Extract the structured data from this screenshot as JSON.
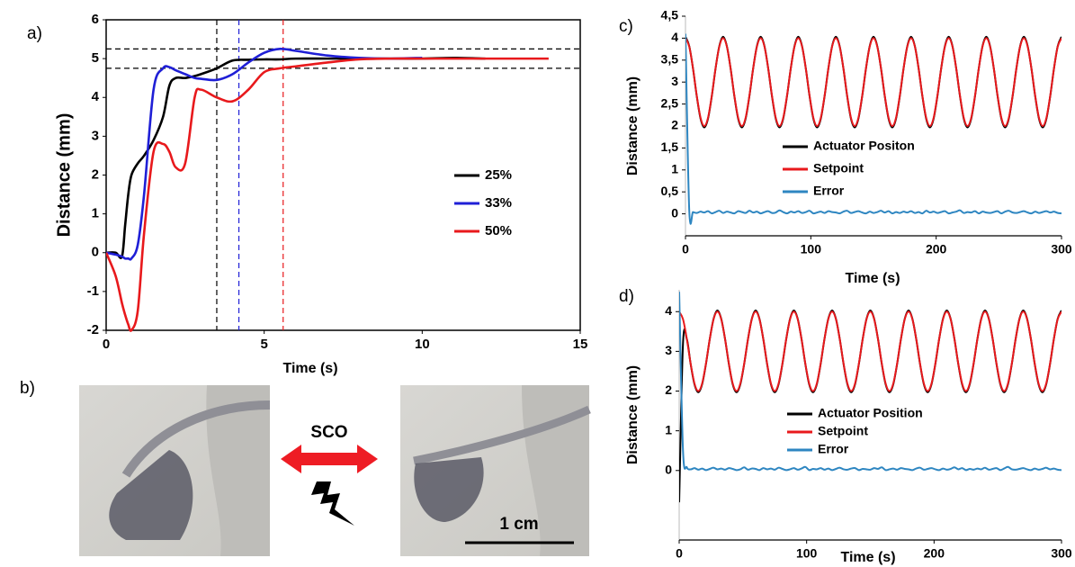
{
  "chart_data": [
    {
      "label": "a)",
      "type": "line",
      "x_label": "Time (s)",
      "y_label": "Distance (mm)",
      "x": [
        0,
        0.3,
        0.5,
        0.6,
        0.7,
        0.8,
        1,
        1.2,
        1.5,
        1.8,
        2,
        2.2,
        2.5,
        2.8,
        3,
        3.5,
        4,
        4.5,
        5,
        5.5,
        6,
        7,
        8,
        9,
        10,
        11,
        12,
        13,
        14
      ],
      "series": [
        {
          "name": "25%",
          "color": "#000000",
          "values": [
            0,
            0,
            -0.1,
            0.7,
            1.5,
            2,
            2.3,
            2.5,
            2.9,
            3.5,
            4.3,
            4.5,
            4.5,
            4.55,
            4.6,
            4.75,
            4.95,
            4.97,
            4.98,
            4.98,
            5.0,
            5.0,
            5.0,
            5.0,
            5.0,
            5.02,
            5.0,
            null,
            null
          ]
        },
        {
          "name": "33%",
          "color": "#1f1fd6",
          "values": [
            0,
            -0.05,
            -0.1,
            -0.15,
            -0.15,
            -0.15,
            0.2,
            1.5,
            4.2,
            4.75,
            4.78,
            4.7,
            4.6,
            4.5,
            4.48,
            4.45,
            4.6,
            4.9,
            5.15,
            5.25,
            5.2,
            5.08,
            5.02,
            5.0,
            5.02,
            null,
            null,
            null,
            null
          ]
        },
        {
          "name": "50%",
          "color": "#e8191c",
          "values": [
            0,
            -0.6,
            -1.3,
            -1.6,
            -1.85,
            -2,
            -1.5,
            0.5,
            2.6,
            2.8,
            2.6,
            2.2,
            2.3,
            4.0,
            4.2,
            4.0,
            3.9,
            4.2,
            4.65,
            4.75,
            4.8,
            4.9,
            4.98,
            5.0,
            5.0,
            5.0,
            5.0,
            5.0,
            5.0
          ]
        }
      ],
      "xlim": [
        0,
        15
      ],
      "xticks": [
        0,
        5,
        10,
        15
      ],
      "ylim": [
        -2,
        6
      ],
      "yticks": [
        -2,
        -1,
        0,
        1,
        2,
        3,
        4,
        5,
        6
      ],
      "hlines": [
        4.75,
        5.25
      ],
      "vlines": [
        {
          "value": 3.5,
          "color": "#000000"
        },
        {
          "value": 4.2,
          "color": "#1f1fd6"
        },
        {
          "value": 5.6,
          "color": "#e8191c"
        }
      ],
      "frame": true,
      "legend": "right"
    },
    {
      "label": "c)",
      "type": "line",
      "x_label": "Time (s)",
      "y_label": "Distance (mm)",
      "x": [
        0,
        3,
        6,
        9,
        12,
        15,
        18,
        21,
        24,
        27,
        30,
        33,
        36,
        39,
        42,
        45,
        48,
        51,
        54,
        57,
        60,
        63,
        66,
        69,
        72,
        75,
        78,
        81,
        84,
        87,
        90,
        93,
        96,
        99,
        102,
        105,
        108,
        111,
        114,
        117,
        120,
        123,
        126,
        129,
        132,
        135,
        138,
        141,
        144,
        147,
        150,
        153,
        156,
        159,
        162,
        165,
        168,
        171,
        174,
        177,
        180,
        183,
        186,
        189,
        192,
        195,
        198,
        201,
        204,
        207,
        210,
        213,
        216,
        219,
        222,
        225,
        228,
        231,
        234,
        237,
        240,
        243,
        246,
        249,
        252,
        255,
        258,
        261,
        264,
        267,
        270,
        273,
        276,
        279,
        282,
        285,
        288,
        291,
        294,
        297,
        300
      ],
      "series": [
        {
          "name": "Actuator Positon",
          "color": "#000000",
          "values": [
            4.03,
            3.82,
            3.31,
            2.68,
            2.17,
            1.97,
            2.17,
            2.68,
            3.31,
            3.82,
            4.03,
            3.82,
            3.31,
            2.68,
            2.17,
            1.97,
            2.17,
            2.68,
            3.31,
            3.82,
            4.03,
            3.82,
            3.31,
            2.68,
            2.17,
            1.97,
            2.17,
            2.68,
            3.31,
            3.82,
            4.03,
            3.82,
            3.31,
            2.68,
            2.17,
            1.97,
            2.17,
            2.68,
            3.31,
            3.82,
            4.03,
            3.82,
            3.31,
            2.68,
            2.17,
            1.97,
            2.17,
            2.68,
            3.31,
            3.82,
            4.03,
            3.82,
            3.31,
            2.68,
            2.17,
            1.97,
            2.17,
            2.68,
            3.31,
            3.82,
            4.03,
            3.82,
            3.31,
            2.68,
            2.17,
            1.97,
            2.17,
            2.68,
            3.31,
            3.82,
            4.03,
            3.82,
            3.31,
            2.68,
            2.17,
            1.97,
            2.17,
            2.68,
            3.31,
            3.82,
            4.03,
            3.82,
            3.31,
            2.68,
            2.17,
            1.97,
            2.17,
            2.68,
            3.31,
            3.82,
            4.03,
            3.82,
            3.31,
            2.68,
            2.17,
            1.97,
            2.17,
            2.68,
            3.31,
            3.82,
            4.03
          ]
        },
        {
          "name": "Setpoint",
          "color": "#e8191c",
          "values": [
            4,
            3.81,
            3.31,
            2.69,
            2.19,
            2,
            2.19,
            2.69,
            3.31,
            3.81,
            4,
            3.81,
            3.31,
            2.69,
            2.19,
            2,
            2.19,
            2.69,
            3.31,
            3.81,
            4,
            3.81,
            3.31,
            2.69,
            2.19,
            2,
            2.19,
            2.69,
            3.31,
            3.81,
            4,
            3.81,
            3.31,
            2.69,
            2.19,
            2,
            2.19,
            2.69,
            3.31,
            3.81,
            4,
            3.81,
            3.31,
            2.69,
            2.19,
            2,
            2.19,
            2.69,
            3.31,
            3.81,
            4,
            3.81,
            3.31,
            2.69,
            2.19,
            2,
            2.19,
            2.69,
            3.31,
            3.81,
            4,
            3.81,
            3.31,
            2.69,
            2.19,
            2,
            2.19,
            2.69,
            3.31,
            3.81,
            4,
            3.81,
            3.31,
            2.69,
            2.19,
            2,
            2.19,
            2.69,
            3.31,
            3.81,
            4,
            3.81,
            3.31,
            2.69,
            2.19,
            2,
            2.19,
            2.69,
            3.31,
            3.81,
            4,
            3.81,
            3.31,
            2.69,
            2.19,
            2,
            2.19,
            2.69,
            3.31,
            3.81,
            4
          ]
        },
        {
          "name": "Error",
          "color": "#2e86c1",
          "values": [
            4.1,
            0.08,
            0.04,
            0.02,
            0.05,
            0.03,
            0.06,
            0.01,
            0.04,
            0.07,
            0.02,
            0.05,
            0.03,
            0.01,
            0.06,
            0.04,
            0.02,
            0.07,
            0.03,
            0.05,
            0.01,
            0.04,
            0.06,
            0.02,
            0.03,
            0.08,
            0.04,
            0.01,
            0.05,
            0.03,
            0.06,
            0.02,
            0.04,
            0.07,
            0.01,
            0.03,
            0.05,
            0.02,
            0.06,
            0.04,
            0.03,
            0.01,
            0.05,
            0.07,
            0.02,
            0.04,
            0.06,
            0.03,
            0.01,
            0.05,
            0.02,
            0.04,
            0.07,
            0.03,
            0.06,
            0.01,
            0.04,
            0.02,
            0.05,
            0.03,
            0.06,
            0.02,
            0.04,
            0.01,
            0.07,
            0.03,
            0.05,
            0.02,
            0.04,
            0.06,
            0.01,
            0.03,
            0.05,
            0.08,
            0.02,
            0.04,
            0.03,
            0.06,
            0.01,
            0.05,
            0.03,
            0.02,
            0.04,
            0.06,
            0.01,
            0.05,
            0.07,
            0.03,
            0.02,
            0.04,
            0.06,
            0.03,
            0.01,
            0.05,
            0.02,
            0.04,
            0.06,
            0.03,
            0.05,
            0.02,
            0.01
          ]
        }
      ],
      "xlim": [
        0,
        300
      ],
      "xticks": [
        0,
        100,
        200,
        300
      ],
      "ylim": [
        -0.5,
        4.5
      ],
      "yticks": [
        0,
        {
          "value": 0.5,
          "label": "0,5"
        },
        1,
        {
          "value": 1.5,
          "label": "1,5"
        },
        2,
        {
          "value": 2.5,
          "label": "2,5"
        },
        3,
        {
          "value": 3.5,
          "label": "3,5"
        },
        4,
        {
          "value": 4.5,
          "label": "4,5"
        }
      ],
      "frame": false,
      "legend": "center"
    },
    {
      "label": "d)",
      "type": "line",
      "x_label": "Time (s)",
      "y_label": "Distance (mm)",
      "x": [
        0,
        3,
        6,
        9,
        12,
        15,
        18,
        21,
        24,
        27,
        30,
        33,
        36,
        39,
        42,
        45,
        48,
        51,
        54,
        57,
        60,
        63,
        66,
        69,
        72,
        75,
        78,
        81,
        84,
        87,
        90,
        93,
        96,
        99,
        102,
        105,
        108,
        111,
        114,
        117,
        120,
        123,
        126,
        129,
        132,
        135,
        138,
        141,
        144,
        147,
        150,
        153,
        156,
        159,
        162,
        165,
        168,
        171,
        174,
        177,
        180,
        183,
        186,
        189,
        192,
        195,
        198,
        201,
        204,
        207,
        210,
        213,
        216,
        219,
        222,
        225,
        228,
        231,
        234,
        237,
        240,
        243,
        246,
        249,
        252,
        255,
        258,
        261,
        264,
        267,
        270,
        273,
        276,
        279,
        282,
        285,
        288,
        291,
        294,
        297,
        300
      ],
      "series": [
        {
          "name": "Actuator Position",
          "color": "#000000",
          "values": [
            -0.8,
            3.2,
            3.31,
            2.68,
            2.17,
            1.97,
            2.17,
            2.68,
            3.31,
            3.82,
            4.03,
            3.82,
            3.31,
            2.68,
            2.17,
            1.97,
            2.17,
            2.68,
            3.31,
            3.82,
            4.03,
            3.82,
            3.31,
            2.68,
            2.17,
            1.97,
            2.17,
            2.68,
            3.31,
            3.82,
            4.03,
            3.82,
            3.31,
            2.68,
            2.17,
            1.97,
            2.17,
            2.68,
            3.31,
            3.82,
            4.03,
            3.82,
            3.31,
            2.68,
            2.17,
            1.97,
            2.17,
            2.68,
            3.31,
            3.82,
            4.03,
            3.82,
            3.31,
            2.68,
            2.17,
            1.97,
            2.17,
            2.68,
            3.31,
            3.82,
            4.03,
            3.82,
            3.31,
            2.68,
            2.17,
            1.97,
            2.17,
            2.68,
            3.31,
            3.82,
            4.03,
            3.82,
            3.31,
            2.68,
            2.17,
            1.97,
            2.17,
            2.68,
            3.31,
            3.82,
            4.03,
            3.82,
            3.31,
            2.68,
            2.17,
            1.97,
            2.17,
            2.68,
            3.31,
            3.82,
            4.03,
            3.82,
            3.31,
            2.68,
            2.17,
            1.97,
            2.17,
            2.68,
            3.31,
            3.82,
            4.03
          ]
        },
        {
          "name": "Setpoint",
          "color": "#e8191c",
          "values": [
            4,
            3.81,
            3.31,
            2.69,
            2.19,
            2,
            2.19,
            2.69,
            3.31,
            3.81,
            4,
            3.81,
            3.31,
            2.69,
            2.19,
            2,
            2.19,
            2.69,
            3.31,
            3.81,
            4,
            3.81,
            3.31,
            2.69,
            2.19,
            2,
            2.19,
            2.69,
            3.31,
            3.81,
            4,
            3.81,
            3.31,
            2.69,
            2.19,
            2,
            2.19,
            2.69,
            3.31,
            3.81,
            4,
            3.81,
            3.31,
            2.69,
            2.19,
            2,
            2.19,
            2.69,
            3.31,
            3.81,
            4,
            3.81,
            3.31,
            2.69,
            2.19,
            2,
            2.19,
            2.69,
            3.31,
            3.81,
            4,
            3.81,
            3.31,
            2.69,
            2.19,
            2,
            2.19,
            2.69,
            3.31,
            3.81,
            4,
            3.81,
            3.31,
            2.69,
            2.19,
            2,
            2.19,
            2.69,
            3.31,
            3.81,
            4,
            3.81,
            3.31,
            2.69,
            2.19,
            2,
            2.19,
            2.69,
            3.31,
            3.81,
            4,
            3.81,
            3.31,
            2.69,
            2.19,
            2,
            2.19,
            2.69,
            3.31,
            3.81,
            4
          ]
        },
        {
          "name": "Error",
          "color": "#2e86c1",
          "values": [
            4.5,
            0.5,
            0.08,
            0.03,
            0.06,
            0.02,
            0.05,
            0.01,
            0.04,
            0.07,
            0.03,
            0.05,
            0.02,
            0.06,
            0.04,
            0.01,
            0.03,
            0.08,
            0.02,
            0.05,
            0.04,
            0.01,
            0.06,
            0.03,
            0.05,
            0.02,
            0.07,
            0.04,
            0.01,
            0.03,
            0.06,
            0.02,
            0.05,
            0.09,
            0.01,
            0.04,
            0.03,
            0.06,
            0.02,
            0.05,
            0.01,
            0.04,
            0.07,
            0.03,
            0.02,
            0.05,
            0.06,
            0.01,
            0.04,
            0.03,
            0.02,
            0.06,
            0.04,
            0.08,
            0.01,
            0.03,
            0.05,
            0.02,
            0.06,
            0.04,
            0.03,
            0.01,
            0.05,
            0.07,
            0.02,
            0.04,
            0.06,
            0.03,
            0.01,
            0.05,
            0.02,
            0.04,
            0.08,
            0.03,
            0.06,
            0.01,
            0.04,
            0.02,
            0.05,
            0.03,
            0.07,
            0.02,
            0.04,
            0.06,
            0.01,
            0.05,
            0.09,
            0.03,
            0.02,
            0.04,
            0.06,
            0.03,
            0.01,
            0.05,
            0.02,
            0.04,
            0.07,
            0.03,
            0.05,
            0.02,
            0.01
          ]
        }
      ],
      "xlim": [
        0,
        300
      ],
      "xticks": [
        0,
        100,
        200,
        300
      ],
      "ylim": [
        -1.75,
        4.55
      ],
      "yticks": [
        0,
        1,
        2,
        3,
        4
      ],
      "frame": false,
      "legend": "center"
    }
  ],
  "photo_panel": {
    "label": "b)",
    "arrow_label": "SCO",
    "scale_bar": "1 cm"
  }
}
